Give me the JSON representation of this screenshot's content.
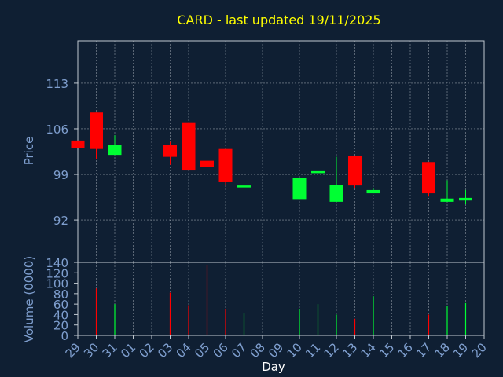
{
  "chart_data": [
    {
      "type": "candlestick",
      "title": "CARD - last updated 19/11/2025",
      "ylabel": "Price",
      "ylim": [
        85.5,
        119.5
      ],
      "yticks": [
        92,
        99,
        106,
        113
      ],
      "grid": true,
      "colors": {
        "up": "#00ff33",
        "down": "#ff0000",
        "title": "#ffff00",
        "axis_text": "#7f9fcf",
        "grid": "#c0c8d0"
      },
      "candles": [
        {
          "day": "29",
          "open": 104.2,
          "high": 104.2,
          "low": 103.0,
          "close": 103.0
        },
        {
          "day": "30",
          "open": 108.5,
          "high": 108.5,
          "low": 101.3,
          "close": 102.9
        },
        {
          "day": "31",
          "open": 102.0,
          "high": 105.0,
          "low": 102.0,
          "close": 103.5
        },
        {
          "day": "03",
          "open": 103.5,
          "high": 104.0,
          "low": 100.5,
          "close": 101.7
        },
        {
          "day": "04",
          "open": 107.0,
          "high": 107.0,
          "low": 99.6,
          "close": 99.6
        },
        {
          "day": "05",
          "open": 101.1,
          "high": 101.1,
          "low": 98.9,
          "close": 100.2
        },
        {
          "day": "06",
          "open": 102.9,
          "high": 102.9,
          "low": 97.3,
          "close": 97.8
        },
        {
          "day": "07",
          "open": 97.0,
          "high": 100.2,
          "low": 96.5,
          "close": 97.3
        },
        {
          "day": "10",
          "open": 95.1,
          "high": 98.5,
          "low": 95.1,
          "close": 98.5
        },
        {
          "day": "11",
          "open": 99.2,
          "high": 100.0,
          "low": 97.2,
          "close": 99.5
        },
        {
          "day": "12",
          "open": 94.8,
          "high": 101.7,
          "low": 94.8,
          "close": 97.4
        },
        {
          "day": "13",
          "open": 101.9,
          "high": 101.9,
          "low": 96.9,
          "close": 97.3
        },
        {
          "day": "14",
          "open": 96.1,
          "high": 96.8,
          "low": 96.1,
          "close": 96.6
        },
        {
          "day": "17",
          "open": 100.9,
          "high": 100.9,
          "low": 95.6,
          "close": 96.1
        },
        {
          "day": "18",
          "open": 94.8,
          "high": 98.1,
          "low": 94.8,
          "close": 95.3
        },
        {
          "day": "19",
          "open": 95.0,
          "high": 96.6,
          "low": 94.4,
          "close": 95.4
        }
      ]
    },
    {
      "type": "bar",
      "ylabel": "Volume (0000)",
      "xlabel": "Day",
      "ylim": [
        0,
        140
      ],
      "yticks": [
        0,
        20,
        40,
        60,
        80,
        100,
        120,
        140
      ],
      "x": [
        "29",
        "30",
        "31",
        "01",
        "02",
        "03",
        "04",
        "05",
        "06",
        "07",
        "08",
        "09",
        "10",
        "11",
        "12",
        "13",
        "14",
        "15",
        "16",
        "17",
        "18",
        "19",
        "20"
      ],
      "bars": [
        {
          "day": "30",
          "value": 90,
          "direction": "down"
        },
        {
          "day": "31",
          "value": 60,
          "direction": "up"
        },
        {
          "day": "03",
          "value": 82,
          "direction": "down"
        },
        {
          "day": "04",
          "value": 58,
          "direction": "down"
        },
        {
          "day": "05",
          "value": 135,
          "direction": "down"
        },
        {
          "day": "06",
          "value": 50,
          "direction": "down"
        },
        {
          "day": "07",
          "value": 42,
          "direction": "up"
        },
        {
          "day": "10",
          "value": 50,
          "direction": "up"
        },
        {
          "day": "11",
          "value": 60,
          "direction": "up"
        },
        {
          "day": "12",
          "value": 40,
          "direction": "up"
        },
        {
          "day": "13",
          "value": 32,
          "direction": "down"
        },
        {
          "day": "14",
          "value": 75,
          "direction": "up"
        },
        {
          "day": "17",
          "value": 40,
          "direction": "down"
        },
        {
          "day": "18",
          "value": 57,
          "direction": "up"
        },
        {
          "day": "19",
          "value": 62,
          "direction": "up"
        }
      ]
    }
  ]
}
